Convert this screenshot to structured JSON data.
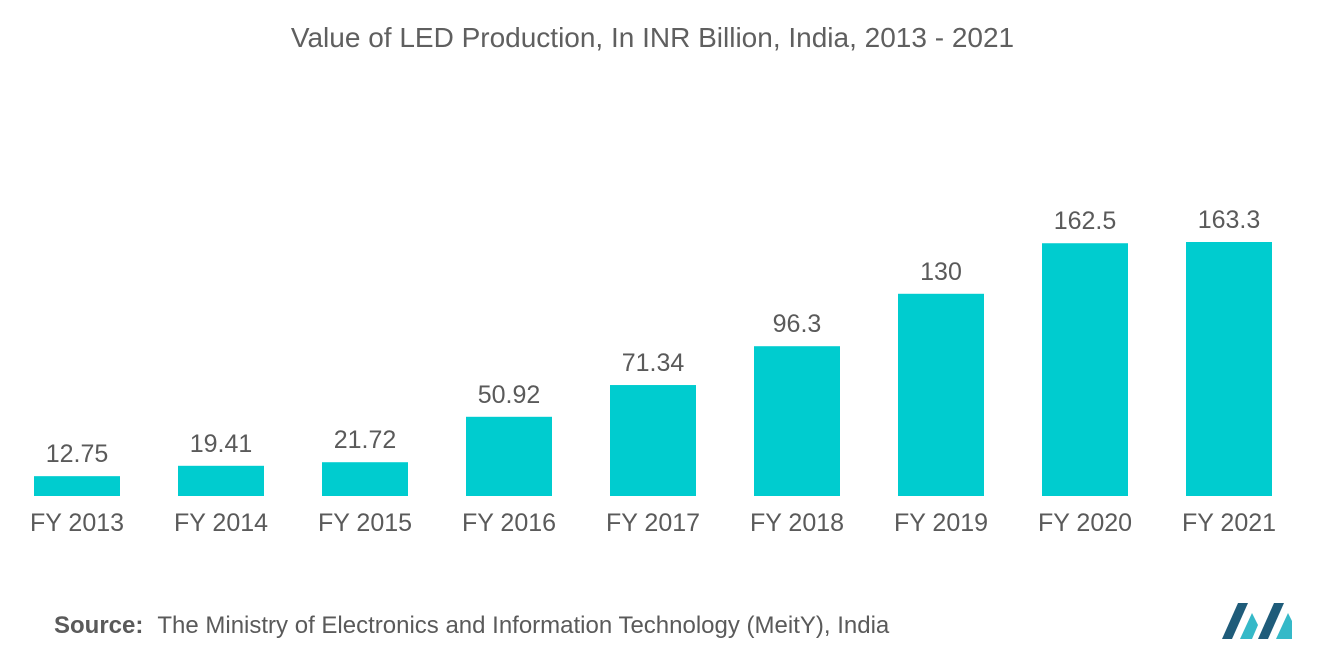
{
  "title": "Value of LED Production, In INR Billion, India, 2013 - 2021",
  "source": {
    "label": "Source:",
    "text": "The Ministry of Electronics and Information Technology (MeitY), India"
  },
  "colors": {
    "bar": "#00cccf",
    "text": "#5a5a5a",
    "logo_dark": "#1f5c7a",
    "logo_light": "#35b9c8"
  },
  "logo": {
    "icon": "company-logo-icon"
  },
  "chart_data": {
    "type": "bar",
    "categories": [
      "FY 2013",
      "FY 2014",
      "FY 2015",
      "FY 2016",
      "FY 2017",
      "FY 2018",
      "FY 2019",
      "FY 2020",
      "FY 2021"
    ],
    "values": [
      12.75,
      19.41,
      21.72,
      50.92,
      71.34,
      96.3,
      130,
      162.5,
      163.3
    ],
    "value_labels": [
      "12.75",
      "19.41",
      "21.72",
      "50.92",
      "71.34",
      "96.3",
      "130",
      "162.5",
      "163.3"
    ],
    "xlabel": "",
    "ylabel": "",
    "ylim": [
      0,
      163.3
    ],
    "grid": false,
    "legend": "none"
  }
}
